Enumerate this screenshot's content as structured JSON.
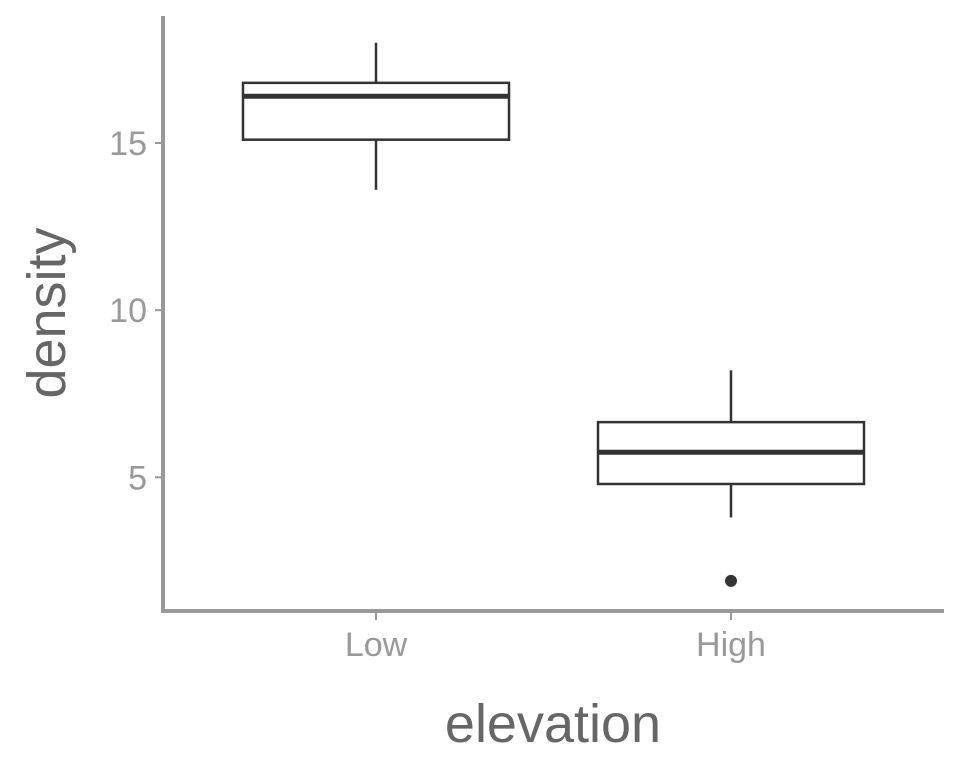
{
  "chart_data": {
    "type": "boxplot",
    "title": "",
    "xlabel": "elevation",
    "ylabel": "density",
    "categories": [
      "Low",
      "High"
    ],
    "ylim": [
      1.0,
      18.8
    ],
    "yticks": [
      5,
      10,
      15
    ],
    "yticklabels": [
      "5",
      "10",
      "15"
    ],
    "grid": false,
    "boxes": [
      {
        "category": "Low",
        "whisker_low": 13.6,
        "q1": 15.1,
        "median": 16.4,
        "q3": 16.8,
        "whisker_high": 18.0,
        "outliers": []
      },
      {
        "category": "High",
        "whisker_low": 3.8,
        "q1": 4.8,
        "median": 5.75,
        "q3": 6.65,
        "whisker_high": 8.2,
        "outliers": [
          1.9
        ]
      }
    ]
  },
  "colors": {
    "axis": "#999999",
    "axis_title": "#666666",
    "box_stroke": "#333333",
    "box_fill": "#ffffff"
  }
}
